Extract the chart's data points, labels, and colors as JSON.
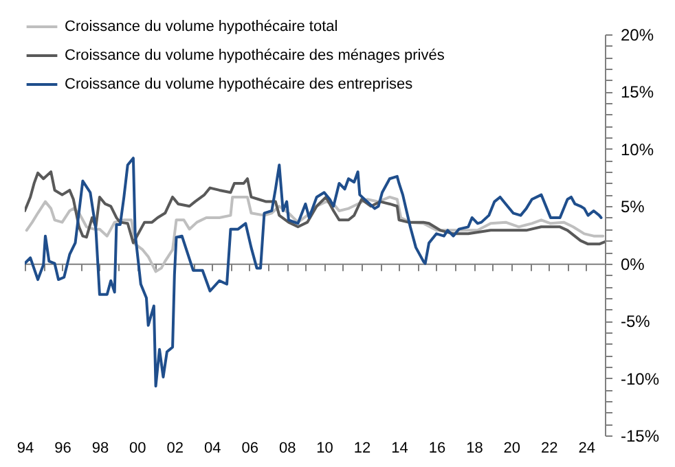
{
  "chart_data": {
    "type": "line",
    "legend": "top left",
    "line_style": "solid",
    "marker": "none",
    "xlim": [
      1994,
      2025
    ],
    "xticks": [
      {
        "value": 1994,
        "label": "94"
      },
      {
        "value": 1995,
        "label": null
      },
      {
        "value": 1996,
        "label": "96"
      },
      {
        "value": 1997,
        "label": null
      },
      {
        "value": 1998,
        "label": "98"
      },
      {
        "value": 1999,
        "label": null
      },
      {
        "value": 2000,
        "label": "00"
      },
      {
        "value": 2001,
        "label": null
      },
      {
        "value": 2002,
        "label": "02"
      },
      {
        "value": 2003,
        "label": null
      },
      {
        "value": 2004,
        "label": "04"
      },
      {
        "value": 2005,
        "label": null
      },
      {
        "value": 2006,
        "label": "06"
      },
      {
        "value": 2007,
        "label": null
      },
      {
        "value": 2008,
        "label": "08"
      },
      {
        "value": 2009,
        "label": null
      },
      {
        "value": 2010,
        "label": "10"
      },
      {
        "value": 2011,
        "label": null
      },
      {
        "value": 2012,
        "label": "12"
      },
      {
        "value": 2013,
        "label": null
      },
      {
        "value": 2014,
        "label": "14"
      },
      {
        "value": 2015,
        "label": null
      },
      {
        "value": 2016,
        "label": "16"
      },
      {
        "value": 2017,
        "label": null
      },
      {
        "value": 2018,
        "label": "18"
      },
      {
        "value": 2019,
        "label": null
      },
      {
        "value": 2020,
        "label": "20"
      },
      {
        "value": 2021,
        "label": null
      },
      {
        "value": 2022,
        "label": "22"
      },
      {
        "value": 2023,
        "label": null
      },
      {
        "value": 2024,
        "label": "24"
      },
      {
        "value": 2025,
        "label": null
      }
    ],
    "ylim": [
      -15,
      20
    ],
    "yticks": [
      {
        "value": -15,
        "label": "-15%"
      },
      {
        "value": -14,
        "label": null
      },
      {
        "value": -13,
        "label": null
      },
      {
        "value": -12,
        "label": null
      },
      {
        "value": -11,
        "label": null
      },
      {
        "value": -10,
        "label": "-10%"
      },
      {
        "value": -9,
        "label": null
      },
      {
        "value": -8,
        "label": null
      },
      {
        "value": -7,
        "label": null
      },
      {
        "value": -6,
        "label": null
      },
      {
        "value": -5,
        "label": "-5%"
      },
      {
        "value": -4,
        "label": null
      },
      {
        "value": -3,
        "label": null
      },
      {
        "value": -2,
        "label": null
      },
      {
        "value": -1,
        "label": null
      },
      {
        "value": 0,
        "label": "0%"
      },
      {
        "value": 1,
        "label": null
      },
      {
        "value": 2,
        "label": null
      },
      {
        "value": 3,
        "label": null
      },
      {
        "value": 4,
        "label": null
      },
      {
        "value": 5,
        "label": "5%"
      },
      {
        "value": 6,
        "label": null
      },
      {
        "value": 7,
        "label": null
      },
      {
        "value": 8,
        "label": null
      },
      {
        "value": 9,
        "label": null
      },
      {
        "value": 10,
        "label": "10%"
      },
      {
        "value": 11,
        "label": null
      },
      {
        "value": 12,
        "label": null
      },
      {
        "value": 13,
        "label": null
      },
      {
        "value": 14,
        "label": null
      },
      {
        "value": 15,
        "label": "15%"
      },
      {
        "value": 16,
        "label": null
      },
      {
        "value": 17,
        "label": null
      },
      {
        "value": 18,
        "label": null
      },
      {
        "value": 19,
        "label": null
      },
      {
        "value": 20,
        "label": "20%"
      }
    ],
    "series": [
      {
        "name": "Croissance du volume hypothécaire total",
        "color": "#bfbfbf",
        "x": [
          1994.1,
          1994.4,
          1994.7,
          1995.1,
          1995.4,
          1995.6,
          1996.0,
          1996.4,
          1996.6,
          1996.9,
          1997.3,
          1997.7,
          1998.0,
          1998.4,
          1998.8,
          1999.3,
          1999.7,
          1999.9,
          2000.3,
          2000.6,
          2001.0,
          2001.3,
          2001.5,
          2001.9,
          2002.1,
          2002.5,
          2002.8,
          2003.2,
          2003.7,
          2004.4,
          2005.0,
          2005.1,
          2005.9,
          2006.1,
          2006.8,
          2007.2,
          2007.6,
          2008.1,
          2008.6,
          2009.1,
          2009.6,
          2010.1,
          2010.5,
          2010.8,
          2011.3,
          2011.8,
          2012.3,
          2012.9,
          2013.5,
          2013.9,
          2014.1,
          2014.6,
          2015.3,
          2016.0,
          2016.7,
          2017.5,
          2018.2,
          2018.9,
          2019.7,
          2020.4,
          2021.1,
          2021.6,
          2022.1,
          2022.8,
          2023.3,
          2023.9,
          2024.4,
          2024.9
        ],
        "values": [
          2.9,
          3.6,
          4.4,
          5.4,
          4.8,
          3.8,
          3.6,
          4.6,
          4.8,
          4.4,
          3.2,
          3.0,
          3.0,
          2.4,
          3.6,
          3.8,
          3.8,
          1.7,
          1.2,
          0.6,
          -0.7,
          -0.4,
          0.2,
          1.2,
          3.8,
          3.8,
          3.0,
          3.6,
          4.0,
          4.0,
          4.2,
          5.8,
          5.8,
          4.4,
          4.2,
          4.4,
          5.0,
          4.4,
          3.6,
          4.2,
          5.0,
          5.4,
          5.2,
          4.6,
          4.8,
          5.2,
          5.6,
          5.4,
          5.8,
          5.6,
          4.0,
          3.6,
          3.5,
          2.9,
          2.9,
          2.9,
          2.9,
          3.5,
          3.6,
          3.2,
          3.5,
          3.8,
          3.5,
          3.6,
          3.2,
          2.6,
          2.4,
          2.4
        ]
      },
      {
        "name": "Croissance du volume hypothécaire des ménages privés",
        "color": "#595959",
        "x": [
          1994.0,
          1994.3,
          1994.5,
          1994.7,
          1995.0,
          1995.4,
          1995.6,
          1996.0,
          1996.4,
          1996.6,
          1996.9,
          1997.1,
          1997.3,
          1997.6,
          1997.8,
          1998.0,
          1998.3,
          1998.6,
          1998.9,
          1999.1,
          1999.5,
          1999.8,
          2000.0,
          2000.4,
          2000.8,
          2001.1,
          2001.5,
          2001.9,
          2002.2,
          2002.8,
          2003.1,
          2003.6,
          2003.9,
          2004.4,
          2005.0,
          2005.2,
          2005.7,
          2005.9,
          2006.1,
          2006.5,
          2006.9,
          2007.4,
          2007.6,
          2008.1,
          2008.6,
          2009.1,
          2009.6,
          2010.1,
          2010.5,
          2010.8,
          2011.3,
          2011.6,
          2012.0,
          2012.5,
          2013.0,
          2013.5,
          2013.9,
          2014.0,
          2014.5,
          2015.3,
          2015.6,
          2016.2,
          2016.9,
          2017.7,
          2018.9,
          2020.1,
          2020.8,
          2021.6,
          2022.6,
          2023.0,
          2023.7,
          2024.1,
          2024.7,
          2025.0
        ],
        "values": [
          4.6,
          5.8,
          7.0,
          7.9,
          7.4,
          8.0,
          6.4,
          6.0,
          6.4,
          5.6,
          3.2,
          2.4,
          2.3,
          4.0,
          3.2,
          5.8,
          5.2,
          5.0,
          4.0,
          3.6,
          3.5,
          1.8,
          2.4,
          3.6,
          3.6,
          4.0,
          4.4,
          5.8,
          5.2,
          5.0,
          5.4,
          6.0,
          6.6,
          6.4,
          6.2,
          7.0,
          7.0,
          7.4,
          5.8,
          5.6,
          5.4,
          5.4,
          4.2,
          3.6,
          3.2,
          3.6,
          5.0,
          5.8,
          4.6,
          3.8,
          3.8,
          4.2,
          5.6,
          5.0,
          5.4,
          5.2,
          5.0,
          3.8,
          3.6,
          3.6,
          3.5,
          2.9,
          2.6,
          2.6,
          2.9,
          2.9,
          2.9,
          3.2,
          3.2,
          2.9,
          2.0,
          1.7,
          1.7,
          1.9
        ]
      },
      {
        "name": "Croissance du volume hypothécaire des entreprises",
        "color": "#1f4e8c",
        "x": [
          1994.0,
          1994.3,
          1994.7,
          1995.0,
          1995.1,
          1995.3,
          1995.6,
          1995.8,
          1996.1,
          1996.4,
          1996.7,
          1997.1,
          1997.5,
          1997.8,
          1998.0,
          1998.4,
          1998.6,
          1998.8,
          1998.9,
          1999.1,
          1999.3,
          1999.5,
          1999.8,
          1999.9,
          2000.2,
          2000.5,
          2000.6,
          2000.9,
          2001.0,
          2001.2,
          2001.4,
          2001.6,
          2001.9,
          2002.0,
          2002.1,
          2002.4,
          2002.6,
          2003.0,
          2003.5,
          2003.9,
          2004.4,
          2004.8,
          2005.0,
          2005.4,
          2005.8,
          2006.1,
          2006.4,
          2006.6,
          2006.8,
          2007.2,
          2007.4,
          2007.6,
          2007.8,
          2008.0,
          2008.1,
          2008.6,
          2009.0,
          2009.2,
          2009.6,
          2010.0,
          2010.3,
          2010.5,
          2010.8,
          2011.1,
          2011.3,
          2011.6,
          2011.8,
          2011.9,
          2012.3,
          2012.7,
          2012.9,
          2013.1,
          2013.5,
          2013.9,
          2014.0,
          2014.2,
          2014.6,
          2014.9,
          2015.3,
          2015.4,
          2015.6,
          2016.0,
          2016.4,
          2016.6,
          2016.9,
          2017.2,
          2017.7,
          2017.9,
          2018.2,
          2018.4,
          2018.8,
          2019.1,
          2019.4,
          2019.7,
          2020.1,
          2020.5,
          2020.8,
          2021.1,
          2021.6,
          2021.9,
          2022.1,
          2022.6,
          2023.0,
          2023.2,
          2023.4,
          2023.7,
          2023.9,
          2024.1,
          2024.4,
          2024.7,
          2024.8
        ],
        "values": [
          0.0,
          0.5,
          -1.4,
          -0.1,
          2.4,
          0.2,
          0.0,
          -1.4,
          -1.2,
          0.8,
          1.8,
          7.2,
          6.2,
          3.0,
          -2.7,
          -2.7,
          -1.5,
          -2.5,
          3.4,
          3.4,
          5.8,
          8.6,
          9.2,
          2.6,
          -1.8,
          -3.0,
          -5.4,
          -3.7,
          -10.7,
          -7.5,
          -9.9,
          -7.7,
          -7.3,
          -1.0,
          2.3,
          2.4,
          1.4,
          -0.6,
          -0.6,
          -2.4,
          -1.5,
          -1.8,
          3.0,
          3.0,
          3.5,
          1.4,
          -0.4,
          -0.4,
          4.4,
          4.6,
          6.5,
          8.6,
          4.6,
          5.4,
          3.8,
          3.5,
          5.2,
          4.0,
          5.8,
          6.2,
          5.6,
          5.0,
          7.0,
          6.5,
          7.4,
          7.1,
          8.0,
          6.0,
          5.4,
          4.8,
          5.0,
          6.2,
          7.4,
          7.6,
          7.0,
          6.0,
          3.2,
          1.4,
          0.2,
          0.0,
          1.8,
          2.6,
          2.4,
          2.9,
          2.4,
          3.0,
          3.2,
          4.0,
          3.5,
          3.6,
          4.2,
          5.4,
          5.8,
          5.2,
          4.4,
          4.2,
          4.8,
          5.6,
          6.0,
          4.8,
          4.0,
          4.0,
          5.6,
          5.8,
          5.2,
          5.0,
          4.8,
          4.2,
          4.6,
          4.2,
          4.0
        ]
      }
    ]
  }
}
